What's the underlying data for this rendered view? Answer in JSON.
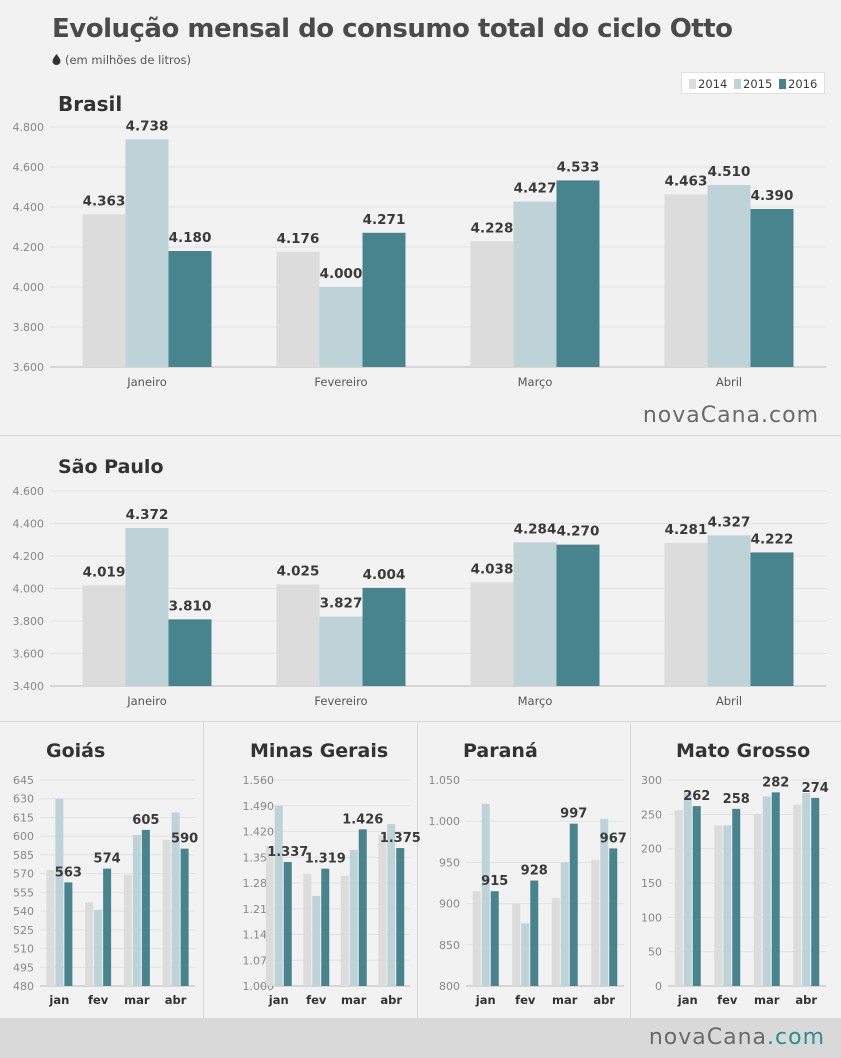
{
  "title": "Evolução mensal do consumo total do ciclo Otto",
  "subtitle": "(em milhões de litros)",
  "legend": [
    "2014",
    "2015",
    "2016"
  ],
  "colors": {
    "2014": "#dcdcdc",
    "2015": "#bdd3d7",
    "2016": "#47848d"
  },
  "brand": {
    "name": "novaCana",
    "suffix": ".com"
  },
  "chart_data": [
    {
      "type": "bar",
      "title": "Brasil",
      "categories": [
        "Janeiro",
        "Fevereiro",
        "Março",
        "Abril"
      ],
      "series": [
        {
          "name": "2014",
          "values": [
            4363,
            4176,
            4228,
            4463
          ]
        },
        {
          "name": "2015",
          "values": [
            4738,
            4000,
            4427,
            4510
          ]
        },
        {
          "name": "2016",
          "values": [
            4180,
            4271,
            4533,
            4390
          ]
        }
      ],
      "labels": [
        [
          "4.363",
          "4.738",
          "4.180"
        ],
        [
          "4.176",
          "4.000",
          "4.271"
        ],
        [
          "4.228",
          "4.427",
          "4.533"
        ],
        [
          "4.463",
          "4.510",
          "4.390"
        ]
      ],
      "ylim": [
        3600,
        4800
      ],
      "yticks": [
        3600,
        3800,
        4000,
        4200,
        4400,
        4600,
        4800
      ],
      "ytick_labels": [
        "3.600",
        "3.800",
        "4.000",
        "4.200",
        "4.400",
        "4.600",
        "4.800"
      ]
    },
    {
      "type": "bar",
      "title": "São Paulo",
      "categories": [
        "Janeiro",
        "Fevereiro",
        "Março",
        "Abril"
      ],
      "series": [
        {
          "name": "2014",
          "values": [
            4019,
            4025,
            4038,
            4281
          ]
        },
        {
          "name": "2015",
          "values": [
            4372,
            3827,
            4284,
            4327
          ]
        },
        {
          "name": "2016",
          "values": [
            3810,
            4004,
            4270,
            4222
          ]
        }
      ],
      "labels": [
        [
          "4.019",
          "4.372",
          "3.810"
        ],
        [
          "4.025",
          "3.827",
          "4.004"
        ],
        [
          "4.038",
          "4.284",
          "4.270"
        ],
        [
          "4.281",
          "4.327",
          "4.222"
        ]
      ],
      "ylim": [
        3400,
        4600
      ],
      "yticks": [
        3400,
        3600,
        3800,
        4000,
        4200,
        4400,
        4600
      ],
      "ytick_labels": [
        "3.400",
        "3.600",
        "3.800",
        "4.000",
        "4.200",
        "4.400",
        "4.600"
      ]
    },
    {
      "type": "bar",
      "title": "Goiás",
      "categories": [
        "jan",
        "fev",
        "mar",
        "abr"
      ],
      "series": [
        {
          "name": "2014",
          "values": [
            573,
            547,
            569,
            597
          ]
        },
        {
          "name": "2015",
          "values": [
            630,
            541,
            601,
            619
          ]
        },
        {
          "name": "2016",
          "values": [
            563,
            574,
            605,
            590
          ]
        }
      ],
      "labels": [
        "563",
        "574",
        "605",
        "590"
      ],
      "ylim": [
        480,
        645
      ],
      "yticks": [
        480,
        495,
        510,
        525,
        540,
        555,
        570,
        585,
        600,
        615,
        630,
        645
      ],
      "ytick_labels": [
        "480",
        "495",
        "510",
        "525",
        "540",
        "555",
        "570",
        "585",
        "600",
        "615",
        "630",
        "645"
      ]
    },
    {
      "type": "bar",
      "title": "Minas Gerais",
      "categories": [
        "jan",
        "fev",
        "mar",
        "abr"
      ],
      "series": [
        {
          "name": "2014",
          "values": [
            1380,
            1305,
            1300,
            1410
          ]
        },
        {
          "name": "2015",
          "values": [
            1490,
            1245,
            1370,
            1440
          ]
        },
        {
          "name": "2016",
          "values": [
            1337,
            1319,
            1426,
            1375
          ]
        }
      ],
      "labels": [
        "1.337",
        "1.319",
        "1.426",
        "1.375"
      ],
      "ylim": [
        1000,
        1560
      ],
      "yticks": [
        1000,
        1070,
        1140,
        1210,
        1280,
        1350,
        1420,
        1490,
        1560
      ],
      "ytick_labels": [
        "1.000",
        "1.070",
        "1.140",
        "1.210",
        "1.280",
        "1.350",
        "1.420",
        "1.490",
        "1.560"
      ]
    },
    {
      "type": "bar",
      "title": "Paraná",
      "categories": [
        "jan",
        "fev",
        "mar",
        "abr"
      ],
      "series": [
        {
          "name": "2014",
          "values": [
            915,
            900,
            907,
            953
          ]
        },
        {
          "name": "2015",
          "values": [
            1021,
            876,
            950,
            1003
          ]
        },
        {
          "name": "2016",
          "values": [
            915,
            928,
            997,
            967
          ]
        }
      ],
      "labels": [
        "915",
        "928",
        "997",
        "967"
      ],
      "ylim": [
        800,
        1050
      ],
      "yticks": [
        800,
        850,
        900,
        950,
        1000,
        1050
      ],
      "ytick_labels": [
        "800",
        "850",
        "900",
        "950",
        "1.000",
        "1.050"
      ]
    },
    {
      "type": "bar",
      "title": "Mato Grosso",
      "categories": [
        "jan",
        "fev",
        "mar",
        "abr"
      ],
      "series": [
        {
          "name": "2014",
          "values": [
            256,
            234,
            250,
            264
          ]
        },
        {
          "name": "2015",
          "values": [
            281,
            234,
            276,
            281
          ]
        },
        {
          "name": "2016",
          "values": [
            262,
            258,
            282,
            274
          ]
        }
      ],
      "labels": [
        "262",
        "258",
        "282",
        "274"
      ],
      "ylim": [
        0,
        300
      ],
      "yticks": [
        0,
        50,
        100,
        150,
        200,
        250,
        300
      ],
      "ytick_labels": [
        "0",
        "50",
        "100",
        "150",
        "200",
        "250",
        "300"
      ]
    }
  ]
}
